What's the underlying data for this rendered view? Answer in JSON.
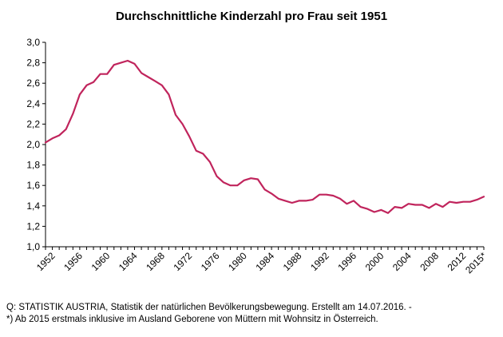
{
  "source_lines": [
    "Q: STATISTIK AUSTRIA, Statistik der natürlichen Bevölkerungsbewegung. Erstellt am 14.07.2016. -",
    "*) Ab 2015 erstmals inklusive im Ausland Geborene von Müttern mit Wohnsitz in Österreich."
  ],
  "chart_data": {
    "type": "line",
    "title": "Durchschnittliche Kinderzahl pro Frau seit 1951",
    "xlabel": "",
    "ylabel": "",
    "ylim": [
      1.0,
      3.0
    ],
    "xlim": [
      1951,
      2015
    ],
    "grid": false,
    "line_color": "#c0245c",
    "y_ticks": [
      1.0,
      1.2,
      1.4,
      1.6,
      1.8,
      2.0,
      2.2,
      2.4,
      2.6,
      2.8,
      3.0
    ],
    "y_tick_labels": [
      "1,0",
      "1,2",
      "1,4",
      "1,6",
      "1,8",
      "2,0",
      "2,2",
      "2,4",
      "2,6",
      "2,8",
      "3,0"
    ],
    "x_tick_labels": [
      {
        "x": 1952,
        "label": "1952"
      },
      {
        "x": 1956,
        "label": "1956"
      },
      {
        "x": 1960,
        "label": "1960"
      },
      {
        "x": 1964,
        "label": "1964"
      },
      {
        "x": 1968,
        "label": "1968"
      },
      {
        "x": 1972,
        "label": "1972"
      },
      {
        "x": 1976,
        "label": "1976"
      },
      {
        "x": 1980,
        "label": "1980"
      },
      {
        "x": 1984,
        "label": "1984"
      },
      {
        "x": 1988,
        "label": "1988"
      },
      {
        "x": 1992,
        "label": "1992"
      },
      {
        "x": 1996,
        "label": "1996"
      },
      {
        "x": 2000,
        "label": "2000"
      },
      {
        "x": 2004,
        "label": "2004"
      },
      {
        "x": 2008,
        "label": "2008"
      },
      {
        "x": 2012,
        "label": "2012"
      },
      {
        "x": 2015,
        "label": "2015*"
      }
    ],
    "x": [
      1951,
      1952,
      1953,
      1954,
      1955,
      1956,
      1957,
      1958,
      1959,
      1960,
      1961,
      1962,
      1963,
      1964,
      1965,
      1966,
      1967,
      1968,
      1969,
      1970,
      1971,
      1972,
      1973,
      1974,
      1975,
      1976,
      1977,
      1978,
      1979,
      1980,
      1981,
      1982,
      1983,
      1984,
      1985,
      1986,
      1987,
      1988,
      1989,
      1990,
      1991,
      1992,
      1993,
      1994,
      1995,
      1996,
      1997,
      1998,
      1999,
      2000,
      2001,
      2002,
      2003,
      2004,
      2005,
      2006,
      2007,
      2008,
      2009,
      2010,
      2011,
      2012,
      2013,
      2014,
      2015
    ],
    "series": [
      {
        "values": [
          2.02,
          2.06,
          2.09,
          2.15,
          2.3,
          2.49,
          2.58,
          2.61,
          2.69,
          2.69,
          2.78,
          2.8,
          2.82,
          2.79,
          2.7,
          2.66,
          2.62,
          2.58,
          2.49,
          2.29,
          2.2,
          2.08,
          1.94,
          1.91,
          1.83,
          1.69,
          1.63,
          1.6,
          1.6,
          1.65,
          1.67,
          1.66,
          1.56,
          1.52,
          1.47,
          1.45,
          1.43,
          1.45,
          1.45,
          1.46,
          1.51,
          1.51,
          1.5,
          1.47,
          1.42,
          1.45,
          1.39,
          1.37,
          1.34,
          1.36,
          1.33,
          1.39,
          1.38,
          1.42,
          1.41,
          1.41,
          1.38,
          1.42,
          1.39,
          1.44,
          1.43,
          1.44,
          1.44,
          1.46,
          1.49
        ]
      }
    ]
  }
}
